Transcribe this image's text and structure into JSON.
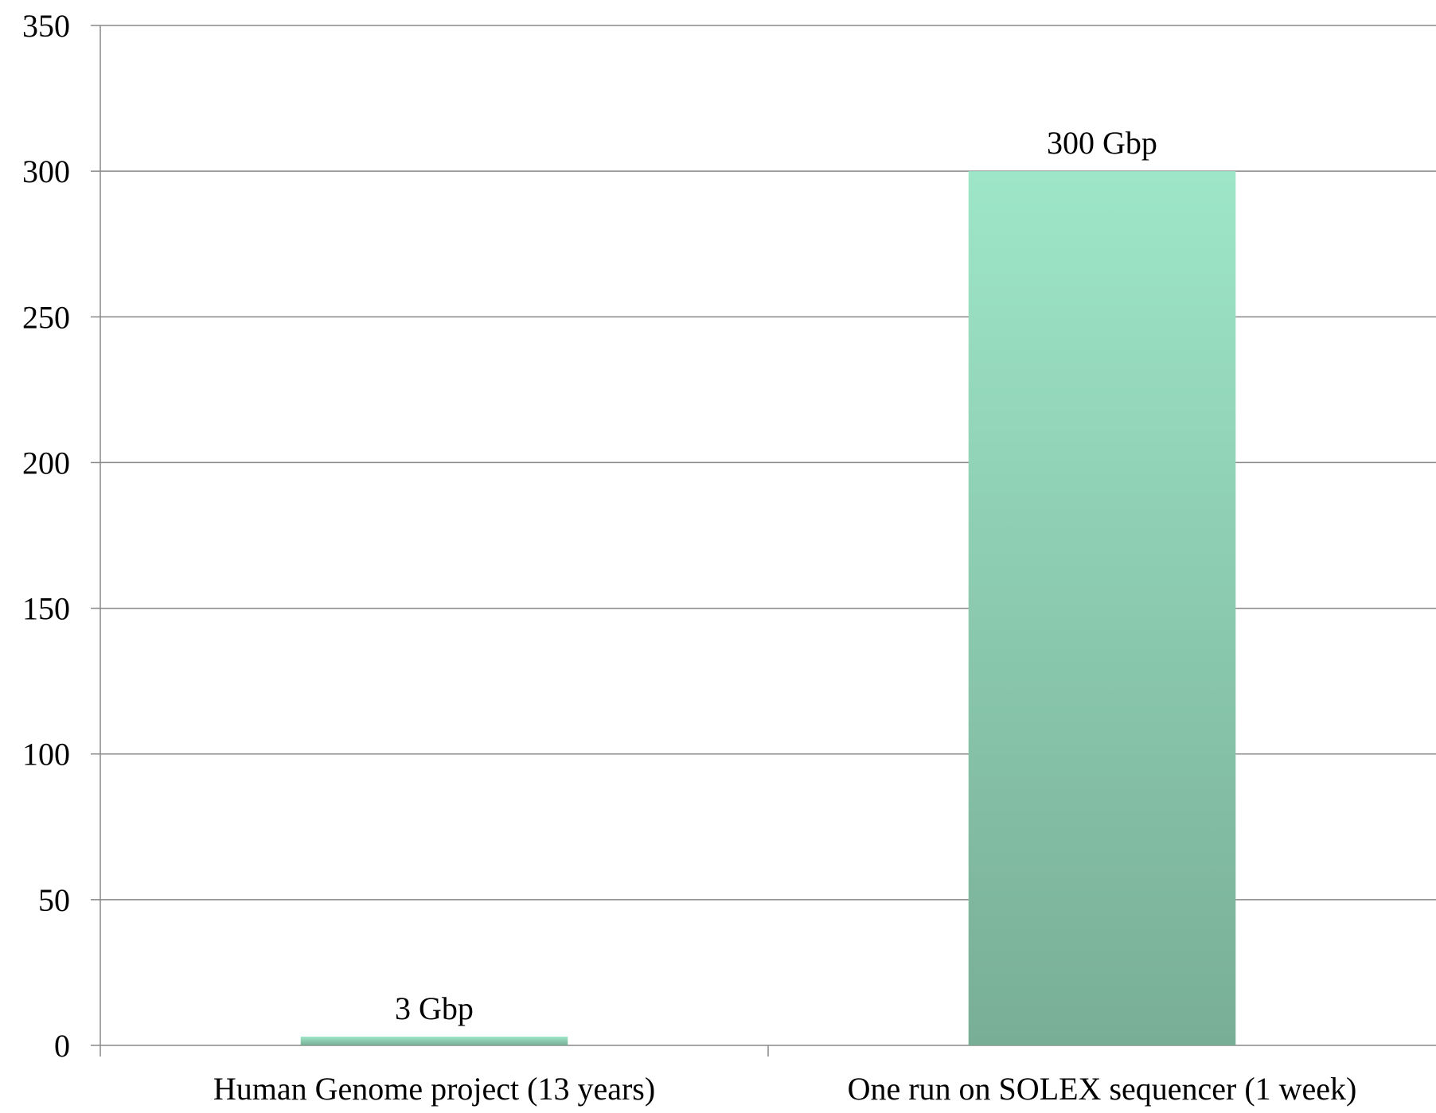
{
  "chart_data": {
    "type": "bar",
    "categories": [
      "Human Genome project (13 years)",
      "One run on SOLEX sequencer (1 week)"
    ],
    "values": [
      3,
      300
    ],
    "data_labels": [
      "3 Gbp",
      "300 Gbp"
    ],
    "ylim": [
      0,
      350
    ],
    "yticks": [
      0,
      50,
      100,
      150,
      200,
      250,
      300,
      350
    ],
    "ytick_labels": [
      "0",
      "50",
      "100",
      "150",
      "200",
      "250",
      "300",
      "350"
    ],
    "grid": true,
    "legend": "none",
    "colors": {
      "bar_top": "#9ee6c8",
      "bar_bottom": "#78ae96",
      "gridline": "#888888",
      "axis": "#888888",
      "text": "#000000"
    }
  }
}
